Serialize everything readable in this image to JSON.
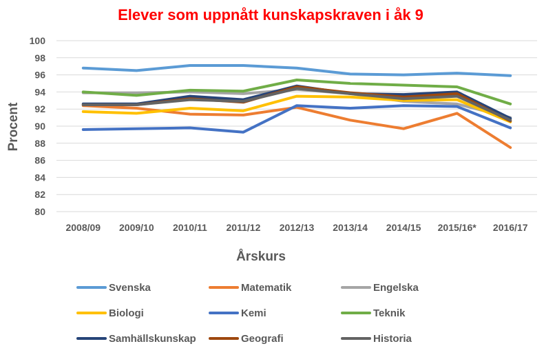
{
  "chart_data": {
    "type": "line",
    "title": "Elever som uppnått kunskapskraven i åk 9",
    "xlabel": "Årskurs",
    "ylabel": "Procent",
    "ylim": [
      80,
      100
    ],
    "ytick_step": 2,
    "grid": true,
    "legend_position": "bottom",
    "categories": [
      "2008/09",
      "2009/10",
      "2010/11",
      "2011/12",
      "2012/13",
      "2013/14",
      "2014/15",
      "2015/16*",
      "2016/17"
    ],
    "series": [
      {
        "name": "Svenska",
        "color": "#5b9bd5",
        "values": [
          96.8,
          96.5,
          97.1,
          97.1,
          96.8,
          96.1,
          96.0,
          96.2,
          95.9
        ]
      },
      {
        "name": "Matematik",
        "color": "#ed7d31",
        "values": [
          92.4,
          92.1,
          91.4,
          91.3,
          92.2,
          90.7,
          89.7,
          91.5,
          87.5
        ]
      },
      {
        "name": "Engelska",
        "color": "#a5a5a5",
        "values": [
          93.9,
          93.9,
          94.0,
          93.8,
          94.3,
          93.8,
          92.9,
          92.6,
          91.0
        ]
      },
      {
        "name": "Biologi",
        "color": "#ffc000",
        "values": [
          91.7,
          91.5,
          92.1,
          91.8,
          93.5,
          93.4,
          93.0,
          93.1,
          90.5
        ]
      },
      {
        "name": "Kemi",
        "color": "#4472c4",
        "values": [
          89.6,
          89.7,
          89.8,
          89.3,
          92.4,
          92.1,
          92.4,
          92.3,
          89.8
        ]
      },
      {
        "name": "Teknik",
        "color": "#70ad47",
        "values": [
          94.0,
          93.6,
          94.2,
          94.1,
          95.4,
          95.0,
          94.8,
          94.6,
          92.6
        ]
      },
      {
        "name": "Samhällskunskap",
        "color": "#264478",
        "values": [
          92.6,
          92.6,
          93.5,
          93.1,
          94.7,
          93.8,
          93.7,
          94.0,
          90.9
        ]
      },
      {
        "name": "Geografi",
        "color": "#9e480e",
        "values": [
          92.5,
          92.5,
          93.2,
          92.8,
          94.6,
          93.9,
          93.4,
          93.8,
          90.6
        ]
      },
      {
        "name": "Historia",
        "color": "#636363",
        "values": [
          92.5,
          92.5,
          93.1,
          92.9,
          94.4,
          93.8,
          93.2,
          93.5,
          90.7
        ]
      }
    ]
  }
}
